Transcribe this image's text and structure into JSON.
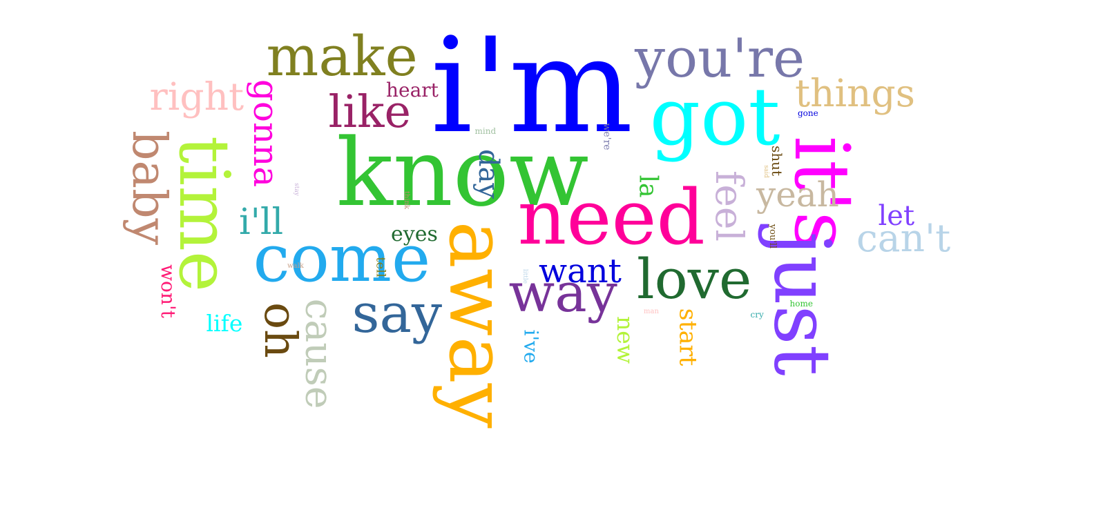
{
  "words": [
    {
      "text": "i'm",
      "color": "#0000ff"
    },
    {
      "text": "know",
      "color": "#33c433"
    },
    {
      "text": "got",
      "color": "#00ffff"
    },
    {
      "text": "it's",
      "color": "#ff00ff"
    },
    {
      "text": "away",
      "color": "#ffb000"
    },
    {
      "text": "just",
      "color": "#8040ff"
    },
    {
      "text": "need",
      "color": "#ff0099"
    },
    {
      "text": "come",
      "color": "#22aaee"
    },
    {
      "text": "time",
      "color": "#b3f33a"
    },
    {
      "text": "make",
      "color": "#808020"
    },
    {
      "text": "you're",
      "color": "#7777aa"
    },
    {
      "text": "love",
      "color": "#206a30"
    },
    {
      "text": "way",
      "color": "#773399"
    },
    {
      "text": "say",
      "color": "#336699"
    },
    {
      "text": "like",
      "color": "#992266"
    },
    {
      "text": "baby",
      "color": "#c08870"
    },
    {
      "text": "right",
      "color": "#ffc0c0"
    },
    {
      "text": "things",
      "color": "#e0c080"
    },
    {
      "text": "can't",
      "color": "#b8d4e8"
    },
    {
      "text": "oh",
      "color": "#6a4a10"
    },
    {
      "text": "cause",
      "color": "#c0ccb8"
    },
    {
      "text": "gonna",
      "color": "#ff00dd"
    },
    {
      "text": "feel",
      "color": "#c8b0d8"
    },
    {
      "text": "yeah",
      "color": "#c8b8a0"
    },
    {
      "text": "want",
      "color": "#0000dd"
    },
    {
      "text": "i'll",
      "color": "#33aaaa"
    },
    {
      "text": "day",
      "color": "#336699"
    },
    {
      "text": "la",
      "color": "#33c433"
    },
    {
      "text": "let",
      "color": "#8040ff"
    },
    {
      "text": "start",
      "color": "#ffb000"
    },
    {
      "text": "new",
      "color": "#b3f33a"
    },
    {
      "text": "won't",
      "color": "#ff1a75"
    },
    {
      "text": "heart",
      "color": "#992266"
    },
    {
      "text": "eyes",
      "color": "#206a30"
    },
    {
      "text": "life",
      "color": "#00ffff"
    },
    {
      "text": "i've",
      "color": "#22aaee"
    },
    {
      "text": "shut",
      "color": "#6a4a10"
    },
    {
      "text": "tell",
      "color": "#808020"
    },
    {
      "text": "we're",
      "color": "#7777aa"
    },
    {
      "text": "you'll",
      "color": "#6a4a10"
    },
    {
      "text": "mind",
      "color": "#a0c0a0"
    },
    {
      "text": "gone",
      "color": "#0000dd"
    },
    {
      "text": "home",
      "color": "#33c433"
    },
    {
      "text": "cry",
      "color": "#33aaaa"
    },
    {
      "text": "man",
      "color": "#ffc0c0"
    },
    {
      "text": "walk",
      "color": "#c8a088"
    },
    {
      "text": "think",
      "color": "#c08870"
    },
    {
      "text": "stay",
      "color": "#c8b0d8"
    },
    {
      "text": "said",
      "color": "#e0c080"
    },
    {
      "text": "little",
      "color": "#b8d4e8"
    }
  ]
}
